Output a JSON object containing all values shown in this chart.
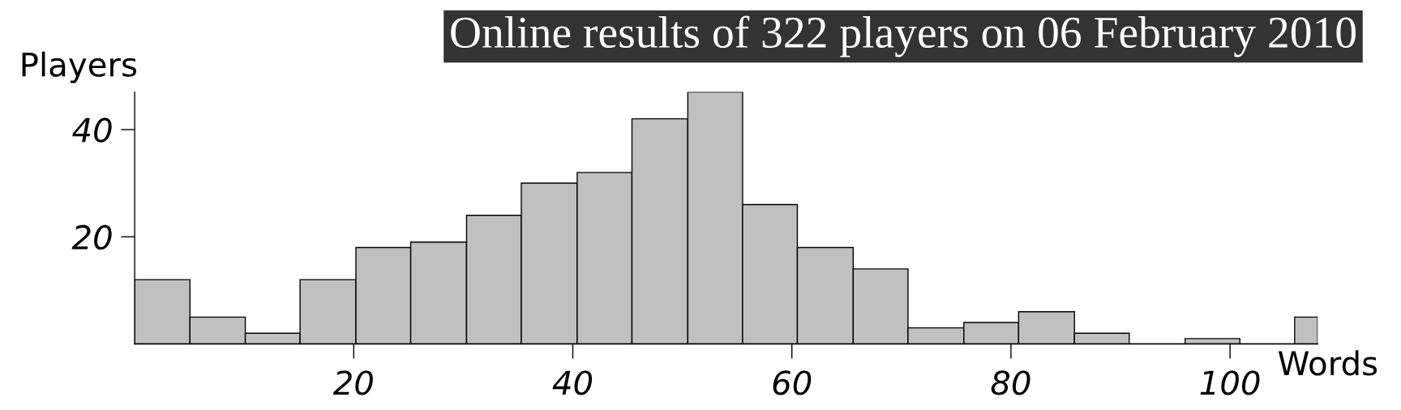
{
  "chart_data": {
    "type": "histogram",
    "title": "Online results of 322 players on 06 February 2010",
    "xlabel": "Words",
    "ylabel": "Players",
    "bins": [
      0,
      5.05,
      10.1,
      15.1,
      20.2,
      25.2,
      30.3,
      35.3,
      40.4,
      45.4,
      50.5,
      55.5,
      60.5,
      65.6,
      70.6,
      75.7,
      80.7,
      85.8,
      90.8,
      95.9,
      100.9,
      105.9,
      108
    ],
    "values": [
      12,
      5,
      2,
      12,
      18,
      19,
      24,
      30,
      32,
      42,
      47,
      26,
      18,
      14,
      3,
      4,
      6,
      2,
      0,
      1,
      0,
      5
    ],
    "color": "#c0c0c0",
    "xlim": [
      0,
      108
    ],
    "xticks": [
      20,
      40,
      60,
      80,
      100
    ],
    "ylim": [
      0,
      47
    ],
    "yticks": [
      20,
      40
    ]
  }
}
